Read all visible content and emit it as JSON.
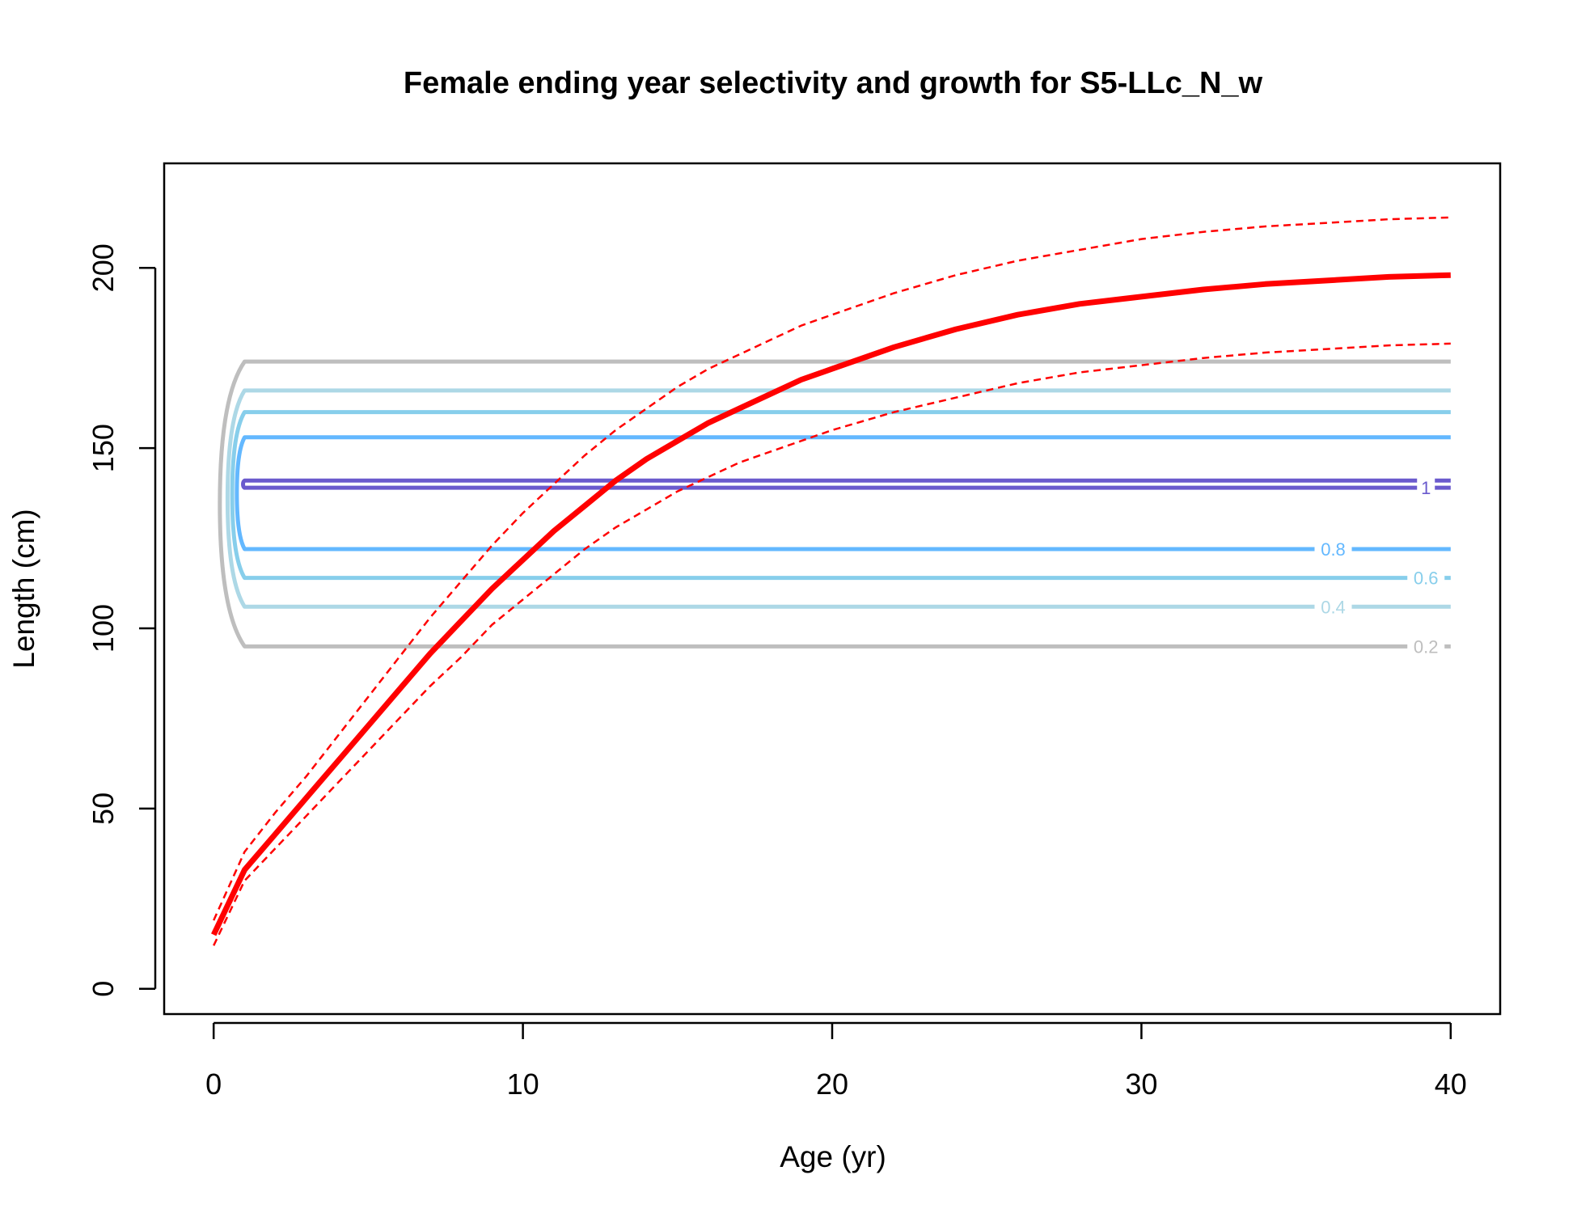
{
  "chart_data": {
    "type": "line",
    "title": "Female ending year selectivity and growth for S5-LLc_N_w",
    "xlabel": "Age (yr)",
    "ylabel": "Length (cm)",
    "xlim": [
      -1.6,
      41.6
    ],
    "ylim": [
      -7,
      229
    ],
    "xticks": [
      0,
      10,
      20,
      30,
      40
    ],
    "yticks": [
      0,
      50,
      100,
      150,
      200
    ],
    "grid": false,
    "legend": "none",
    "growth": {
      "x": [
        0,
        1,
        2,
        3,
        4,
        5,
        6,
        7,
        8,
        9,
        10,
        11,
        12,
        13,
        14,
        15,
        16,
        17,
        18,
        19,
        20,
        22,
        24,
        26,
        28,
        30,
        32,
        34,
        36,
        38,
        40
      ],
      "mean": [
        15,
        33,
        43,
        53,
        63,
        73,
        83,
        93,
        102,
        111,
        119,
        127,
        134,
        141,
        147,
        152,
        157,
        161,
        165,
        169,
        172,
        178,
        183,
        187,
        190,
        192,
        194,
        195.5,
        196.5,
        197.5,
        198
      ],
      "upper": [
        19,
        38,
        49,
        59,
        70,
        81,
        92,
        103,
        113,
        123,
        132,
        140,
        148,
        155,
        161,
        167,
        172,
        176,
        180,
        184,
        187,
        193,
        198,
        202,
        205,
        208,
        210,
        211.5,
        212.5,
        213.5,
        214
      ],
      "lower": [
        12,
        30,
        39,
        48,
        57,
        66,
        75,
        84,
        92,
        101,
        108,
        115,
        122,
        128,
        133,
        138,
        142,
        146,
        149,
        152,
        155,
        160,
        164,
        168,
        171,
        173,
        175,
        176.5,
        177.5,
        178.5,
        179
      ],
      "color": "#ff0000"
    },
    "selectivity_contours": [
      {
        "level": 0.2,
        "label": "0.2",
        "lower": 95,
        "upper": 174,
        "left_age": 0.2,
        "color": "#bebebe"
      },
      {
        "level": 0.4,
        "label": "0.4",
        "lower": 106,
        "upper": 166,
        "left_age": 0.45,
        "color": "#add8e6"
      },
      {
        "level": 0.6,
        "label": "0.6",
        "lower": 114,
        "upper": 160,
        "left_age": 0.6,
        "color": "#87ceeb"
      },
      {
        "level": 0.8,
        "label": "0.8",
        "lower": 122,
        "upper": 153,
        "left_age": 0.75,
        "color": "#63b8ff"
      },
      {
        "level": 1,
        "label": "1",
        "lower": 139,
        "upper": 141,
        "left_age": 0.95,
        "color": "#6a5acd"
      }
    ],
    "series": [
      {
        "name": "",
        "values": []
      }
    ]
  }
}
